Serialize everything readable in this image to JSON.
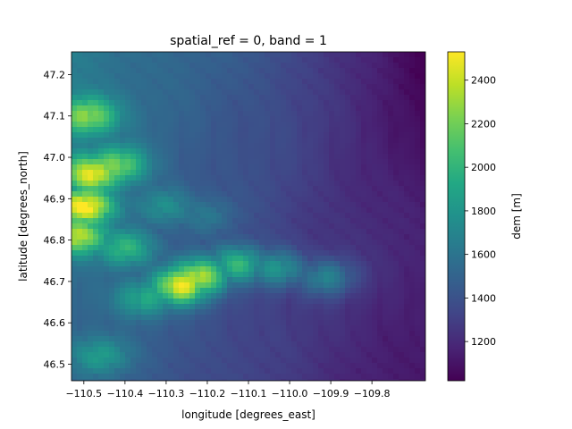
{
  "chart_data": {
    "type": "heatmap",
    "title": "spatial_ref = 0, band = 1",
    "xlabel": "longitude [degrees_east]",
    "ylabel": "latitude [degrees_north]",
    "xlim": [
      -110.53,
      -109.67
    ],
    "ylim": [
      46.46,
      47.255
    ],
    "x_ticks": [
      {
        "value": -110.5,
        "label": "−110.5"
      },
      {
        "value": -110.4,
        "label": "−110.4"
      },
      {
        "value": -110.3,
        "label": "−110.3"
      },
      {
        "value": -110.2,
        "label": "−110.2"
      },
      {
        "value": -110.1,
        "label": "−110.1"
      },
      {
        "value": -110.0,
        "label": "−110.0"
      },
      {
        "value": -109.9,
        "label": "−109.9"
      },
      {
        "value": -109.8,
        "label": "−109.8"
      }
    ],
    "y_ticks": [
      {
        "value": 46.5,
        "label": "46.5"
      },
      {
        "value": 46.6,
        "label": "46.6"
      },
      {
        "value": 46.7,
        "label": "46.7"
      },
      {
        "value": 46.8,
        "label": "46.8"
      },
      {
        "value": 46.9,
        "label": "46.9"
      },
      {
        "value": 47.0,
        "label": "47.0"
      },
      {
        "value": 47.1,
        "label": "47.1"
      },
      {
        "value": 47.2,
        "label": "47.2"
      }
    ],
    "colorbar": {
      "label": "dem [m]",
      "colormap": "viridis",
      "range": [
        1020,
        2530
      ],
      "ticks": [
        {
          "value": 1200,
          "label": "1200"
        },
        {
          "value": 1400,
          "label": "1400"
        },
        {
          "value": 1600,
          "label": "1600"
        },
        {
          "value": 1800,
          "label": "1800"
        },
        {
          "value": 2000,
          "label": "2000"
        },
        {
          "value": 2200,
          "label": "2200"
        },
        {
          "value": 2400,
          "label": "2400"
        }
      ]
    },
    "elevation_features": [
      {
        "lon": -110.22,
        "lat": 46.71,
        "elevation": 2450
      },
      {
        "lon": -110.26,
        "lat": 46.69,
        "elevation": 2500
      },
      {
        "lon": -110.12,
        "lat": 46.74,
        "elevation": 2150
      },
      {
        "lon": -110.03,
        "lat": 46.73,
        "elevation": 2050
      },
      {
        "lon": -109.91,
        "lat": 46.71,
        "elevation": 1950
      },
      {
        "lon": -110.5,
        "lat": 46.88,
        "elevation": 2450
      },
      {
        "lon": -110.48,
        "lat": 46.96,
        "elevation": 2350
      },
      {
        "lon": -110.49,
        "lat": 47.1,
        "elevation": 2200
      },
      {
        "lon": -110.42,
        "lat": 46.98,
        "elevation": 2150
      },
      {
        "lon": -110.51,
        "lat": 46.81,
        "elevation": 2250
      },
      {
        "lon": -110.4,
        "lat": 46.78,
        "elevation": 2000
      },
      {
        "lon": -110.35,
        "lat": 46.66,
        "elevation": 1950
      },
      {
        "lon": -110.46,
        "lat": 46.52,
        "elevation": 1850
      },
      {
        "lon": -110.3,
        "lat": 46.88,
        "elevation": 1800
      },
      {
        "lon": -110.2,
        "lat": 46.86,
        "elevation": 1700
      },
      {
        "lon": -109.85,
        "lat": 47.22,
        "elevation": 1050
      },
      {
        "lon": -109.75,
        "lat": 47.05,
        "elevation": 1100
      },
      {
        "lon": -109.8,
        "lat": 46.9,
        "elevation": 1250
      }
    ]
  },
  "colors": {
    "viridis": [
      "#440154",
      "#482475",
      "#414487",
      "#355f8d",
      "#2a788e",
      "#21918c",
      "#22a884",
      "#44bf70",
      "#7ad151",
      "#bddf26",
      "#fde725"
    ]
  }
}
